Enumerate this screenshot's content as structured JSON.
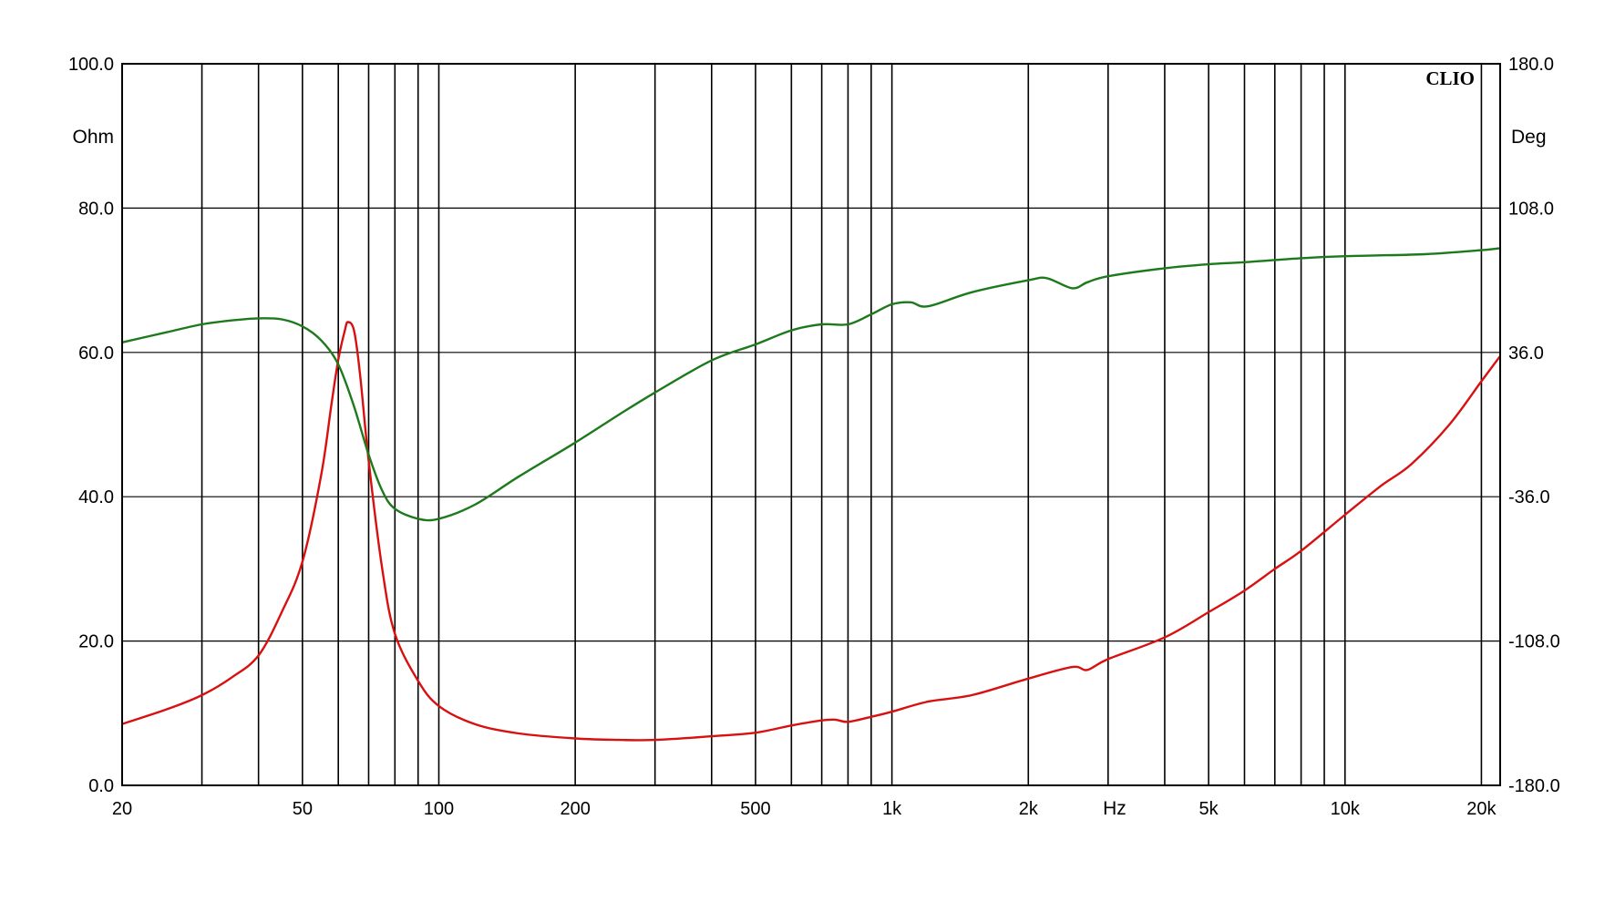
{
  "chart_data": {
    "type": "line",
    "brand": "CLIO",
    "x_scale": "log",
    "xlim": [
      20,
      22000
    ],
    "x_tick_values": [
      20,
      50,
      100,
      200,
      500,
      1000,
      2000,
      5000,
      10000,
      20000
    ],
    "x_tick_labels": [
      "20",
      "50",
      "100",
      "200",
      "500",
      "1k",
      "2k",
      "5k",
      "10k",
      "20k"
    ],
    "x_unit": "Hz",
    "x_unit_position_hz": 3100,
    "x_grid": [
      20,
      30,
      40,
      50,
      60,
      70,
      80,
      90,
      100,
      200,
      300,
      400,
      500,
      600,
      700,
      800,
      900,
      1000,
      2000,
      3000,
      4000,
      5000,
      6000,
      7000,
      8000,
      9000,
      10000,
      20000
    ],
    "y_left": {
      "unit": "Ohm",
      "ylim": [
        0,
        100
      ],
      "tick_values": [
        0,
        20,
        40,
        60,
        80,
        100
      ],
      "tick_labels": [
        "0.0",
        "20.0",
        "40.0",
        "60.0",
        "80.0",
        "100.0"
      ]
    },
    "y_right": {
      "unit": "Deg",
      "ylim": [
        -180,
        180
      ],
      "tick_values": [
        -180,
        -108,
        -36,
        36,
        108,
        180
      ],
      "tick_labels": [
        "-180.0",
        "-108.0",
        "-36.0",
        "36.0",
        "108.0",
        "180.0"
      ]
    },
    "grid": true,
    "series": [
      {
        "color": "#d81010",
        "axis": "left",
        "x": [
          20,
          25,
          30,
          35,
          40,
          45,
          50,
          55,
          58,
          60,
          62,
          63,
          65,
          67,
          70,
          75,
          80,
          90,
          100,
          120,
          150,
          200,
          250,
          300,
          400,
          500,
          600,
          700,
          750,
          800,
          900,
          1000,
          1200,
          1500,
          2000,
          2500,
          2700,
          3000,
          4000,
          5000,
          6000,
          7000,
          8000,
          10000,
          12000,
          14000,
          17000,
          20000,
          22000
        ],
        "y": [
          8.5,
          10.5,
          12.5,
          15,
          18,
          24,
          31,
          43,
          53,
          59,
          63,
          64.2,
          63,
          57,
          45,
          30,
          21,
          14.5,
          11,
          8.5,
          7.2,
          6.5,
          6.3,
          6.3,
          6.8,
          7.3,
          8.3,
          9,
          9.1,
          8.8,
          9.5,
          10.2,
          11.6,
          12.5,
          14.8,
          16.4,
          16.0,
          17.5,
          20.5,
          24,
          27,
          30,
          32.5,
          37.5,
          41.5,
          44.5,
          50,
          56,
          59.5
        ]
      },
      {
        "color": "#1c7a1c",
        "axis": "right",
        "x": [
          20,
          25,
          30,
          35,
          40,
          45,
          50,
          55,
          60,
          65,
          70,
          75,
          80,
          90,
          100,
          120,
          150,
          200,
          250,
          300,
          400,
          500,
          600,
          700,
          800,
          900,
          1000,
          1100,
          1200,
          1500,
          2000,
          2200,
          2500,
          2700,
          3000,
          4000,
          5000,
          6000,
          8000,
          10000,
          15000,
          20000,
          22000
        ],
        "y": [
          41,
          46,
          50,
          52,
          53,
          52.5,
          49,
          42,
          30,
          9,
          -15,
          -33,
          -42,
          -47,
          -47,
          -40,
          -26,
          -9,
          5,
          16,
          32,
          40,
          47,
          50,
          50,
          55,
          60,
          61,
          59,
          66,
          72,
          73,
          68,
          71,
          74,
          78,
          80,
          81,
          83,
          84,
          85,
          87,
          88
        ]
      }
    ]
  }
}
